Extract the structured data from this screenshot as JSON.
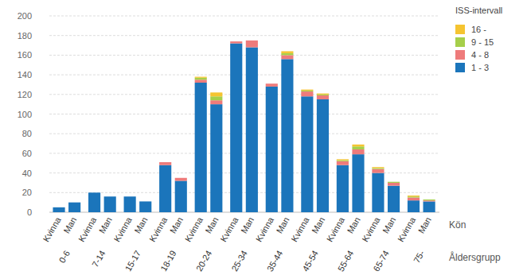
{
  "chart_data": {
    "type": "bar",
    "stacked": true,
    "grid": true,
    "legend": "top-right",
    "legend_title": "ISS-intervall",
    "x_label": "Kön",
    "group_label": "Åldersgrupp",
    "groups": [
      "0-6",
      "7-14",
      "15-17",
      "18-19",
      "20-24",
      "25-34",
      "35-44",
      "45-54",
      "55-64",
      "65-74",
      "75-"
    ],
    "categories": [
      "Kvinna",
      "Man",
      "Kvinna",
      "Man",
      "Kvinna",
      "Man",
      "Kvinna",
      "Man",
      "Kvinna",
      "Man",
      "Kvinna",
      "Man",
      "Kvinna",
      "Man",
      "Kvinna",
      "Man",
      "Kvinna",
      "Man",
      "Kvinna",
      "Man",
      "Kvinna",
      "Man"
    ],
    "ylim": [
      0,
      200
    ],
    "yticks": [
      0,
      20,
      40,
      60,
      80,
      100,
      120,
      140,
      160,
      180,
      200
    ],
    "series": [
      {
        "name": "1 - 3",
        "color": "#1b75bb",
        "values": [
          5,
          10,
          20,
          16,
          16,
          11,
          48,
          32,
          132,
          110,
          172,
          168,
          128,
          156,
          118,
          115,
          48,
          59,
          40,
          27,
          12,
          11
        ]
      },
      {
        "name": "4 - 8",
        "color": "#ee7b7b",
        "values": [
          0,
          0,
          0,
          0,
          0,
          0,
          3,
          3,
          3,
          4,
          2,
          7,
          3,
          4,
          5,
          4,
          4,
          5,
          4,
          3,
          3,
          1
        ]
      },
      {
        "name": "9 - 15",
        "color": "#a6cf4a",
        "values": [
          0,
          0,
          0,
          0,
          0,
          0,
          0,
          0,
          2,
          4,
          0,
          0,
          0,
          2,
          1,
          1,
          1,
          3,
          1,
          1,
          1,
          1
        ]
      },
      {
        "name": "16 -",
        "color": "#f5c431",
        "values": [
          0,
          0,
          0,
          0,
          0,
          0,
          0,
          0,
          1,
          4,
          0,
          0,
          0,
          2,
          1,
          1,
          1,
          2,
          1,
          0,
          1,
          0
        ]
      }
    ]
  }
}
